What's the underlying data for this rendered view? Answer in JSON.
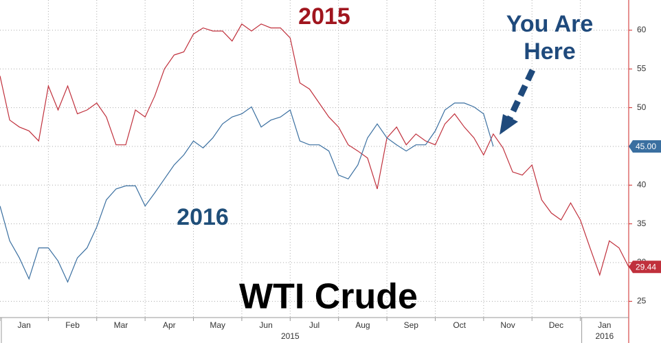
{
  "chart_data": {
    "type": "line",
    "title": "WTI Crude",
    "annotations": {
      "series_2015": "2015",
      "series_2016": "2016",
      "pointer": [
        "You Are",
        "Here"
      ]
    },
    "x_labels": [
      "Jan",
      "Feb",
      "Mar",
      "Apr",
      "May",
      "Jun",
      "Jul",
      "Aug",
      "Sep",
      "Oct",
      "Nov",
      "Dec",
      "Jan"
    ],
    "year_labels": [
      "2015",
      "2016"
    ],
    "ylim": [
      22.9,
      63.9
    ],
    "yticks": [
      25,
      30,
      35,
      40,
      45,
      50,
      55,
      60
    ],
    "grid": true,
    "series": [
      {
        "name": "2015",
        "color": "#c0303c",
        "value_label": "29.44",
        "values": [
          54.1,
          48.4,
          47.5,
          47,
          45.7,
          52.8,
          49.7,
          52.8,
          49.2,
          49.7,
          50.6,
          48.8,
          45.2,
          45.2,
          49.7,
          48.8,
          51.5,
          55,
          56.8,
          57.2,
          59.5,
          60.3,
          59.9,
          59.9,
          58.6,
          60.8,
          59.9,
          60.8,
          60.3,
          60.3,
          59,
          53.2,
          52.4,
          50.6,
          48.8,
          47.5,
          45.2,
          44.4,
          43.5,
          39.5,
          46.1,
          47.5,
          45.2,
          46.6,
          45.7,
          45.2,
          47.9,
          49.2,
          47.5,
          46.1,
          43.9,
          46.6,
          44.8,
          41.7,
          41.3,
          42.6,
          38.1,
          36.4,
          35.5,
          37.7,
          35.5,
          31.9,
          28.4,
          32.8,
          31.9,
          29.44
        ]
      },
      {
        "name": "2016",
        "color": "#3a6fa0",
        "value_label": "45.00",
        "values": [
          37.3,
          32.8,
          30.6,
          27.9,
          31.9,
          31.9,
          30.2,
          27.5,
          30.6,
          31.9,
          34.6,
          38.1,
          39.5,
          39.9,
          39.9,
          37.3,
          39,
          40.8,
          42.6,
          43.9,
          45.7,
          44.8,
          46.1,
          47.9,
          48.8,
          49.2,
          50.1,
          47.5,
          48.4,
          48.8,
          49.7,
          45.7,
          45.2,
          45.2,
          44.4,
          41.3,
          40.8,
          42.6,
          46.1,
          47.9,
          46.1,
          45.2,
          44.4,
          45.2,
          45.2,
          47,
          49.7,
          50.6,
          50.6,
          50.1,
          49.2,
          45,
          null,
          null,
          null,
          null,
          null,
          null,
          null,
          null,
          null,
          null,
          null,
          null,
          null,
          null
        ]
      }
    ]
  }
}
